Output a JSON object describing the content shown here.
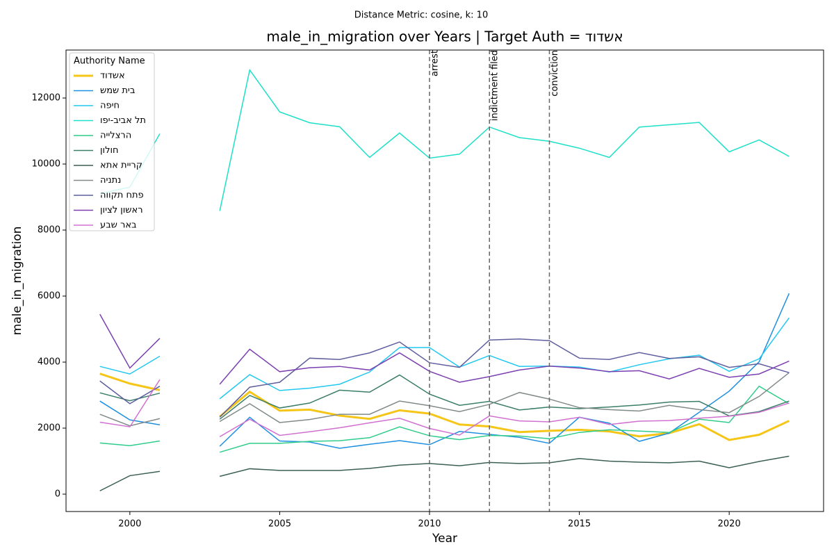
{
  "chart_data": {
    "type": "line",
    "title": "male_in_migration over Years | Target Auth = דודשא",
    "subtitle": "Distance Metric: cosine, k: 10",
    "x_label": "Year",
    "y_label": "male_in_migration",
    "legend_title": "Authority Name",
    "legend": "upper left",
    "x": [
      1999,
      2000,
      2001,
      2002,
      2003,
      2004,
      2005,
      2006,
      2007,
      2008,
      2009,
      2010,
      2011,
      2012,
      2013,
      2014,
      2015,
      2016,
      2017,
      2018,
      2019,
      2020,
      2021,
      2022
    ],
    "xlim": [
      1997.87,
      2023.15
    ],
    "xticks": [
      2000,
      2005,
      2010,
      2015,
      2020
    ],
    "ylim": [
      -526,
      13453
    ],
    "yticks": [
      0,
      2000,
      4000,
      6000,
      8000,
      10000,
      12000
    ],
    "annotations": [
      {
        "x": 2010,
        "label": "arrest"
      },
      {
        "x": 2012,
        "label": "indictment filed"
      },
      {
        "x": 2014,
        "label": "conviction"
      }
    ],
    "series": [
      {
        "name": "דודשא",
        "color": "#f5c518",
        "linewidth": 3,
        "values": [
          3650,
          3350,
          3150,
          null,
          2350,
          3100,
          2530,
          2560,
          2380,
          2280,
          2540,
          2440,
          2110,
          2050,
          1880,
          1920,
          1950,
          1900,
          1750,
          1850,
          2120,
          1640,
          1800,
          2220
        ]
      },
      {
        "name": "שמש תיב",
        "color": "#1f8fe0",
        "linewidth": 1.5,
        "values": [
          2820,
          2250,
          2100,
          null,
          1450,
          2330,
          1610,
          1580,
          1390,
          1510,
          1620,
          1500,
          1900,
          1810,
          1720,
          1540,
          2330,
          2150,
          1600,
          1850,
          2480,
          3120,
          4010,
          6080
        ]
      },
      {
        "name": "הפיח",
        "color": "#22c7f0",
        "linewidth": 1.5,
        "values": [
          3870,
          3640,
          4180,
          null,
          2890,
          3620,
          3140,
          3210,
          3330,
          3700,
          4440,
          4440,
          3850,
          4200,
          3870,
          3880,
          3850,
          3700,
          3920,
          4100,
          4210,
          3720,
          4100,
          5340
        ]
      },
      {
        "name": "ופי-ביבא לת",
        "color": "#1de0c8",
        "linewidth": 1.5,
        "values": [
          9100,
          9300,
          10920,
          null,
          8580,
          12850,
          11580,
          11250,
          11130,
          10200,
          10940,
          10180,
          10300,
          11120,
          10800,
          10690,
          10480,
          10200,
          11120,
          11190,
          11260,
          10370,
          10730,
          10230
        ]
      },
      {
        "name": "היילצרה",
        "color": "#2ecc8a",
        "linewidth": 1.5,
        "values": [
          1550,
          1470,
          1610,
          null,
          1270,
          1540,
          1540,
          1600,
          1620,
          1710,
          2040,
          1770,
          1650,
          1780,
          1760,
          1680,
          1870,
          1950,
          1910,
          1870,
          2270,
          2170,
          3270,
          2740
        ]
      },
      {
        "name": "ןולוח",
        "color": "#3a7d68",
        "linewidth": 1.5,
        "values": [
          3070,
          2830,
          3060,
          null,
          2270,
          2990,
          2610,
          2760,
          3150,
          3090,
          3610,
          3030,
          2690,
          2810,
          2550,
          2640,
          2590,
          2640,
          2700,
          2790,
          2810,
          2370,
          2500,
          2820
        ]
      },
      {
        "name": "אתא תיירק",
        "color": "#3b5f55",
        "linewidth": 1.5,
        "values": [
          100,
          560,
          690,
          null,
          540,
          770,
          720,
          720,
          720,
          780,
          880,
          930,
          860,
          960,
          930,
          950,
          1080,
          1000,
          970,
          950,
          1000,
          800,
          990,
          1150
        ]
      },
      {
        "name": "הינתנ",
        "color": "#808a88",
        "linewidth": 1.5,
        "values": [
          2420,
          2070,
          2290,
          null,
          2200,
          2740,
          2170,
          2260,
          2420,
          2420,
          2820,
          2680,
          2500,
          2720,
          3080,
          2880,
          2620,
          2560,
          2520,
          2690,
          2560,
          2470,
          2960,
          3680
        ]
      },
      {
        "name": "הווקת חתפ",
        "color": "#5e5e9e",
        "linewidth": 1.5,
        "values": [
          3430,
          2740,
          3270,
          null,
          2330,
          3240,
          3390,
          4120,
          4080,
          4280,
          4610,
          3980,
          3840,
          4670,
          4700,
          4650,
          4120,
          4080,
          4290,
          4110,
          4160,
          3840,
          3950,
          3680
        ]
      },
      {
        "name": "ןויצל ןושאר",
        "color": "#7b3fb0",
        "linewidth": 1.5,
        "values": [
          5450,
          3820,
          4720,
          null,
          3330,
          4390,
          3710,
          3830,
          3870,
          3760,
          4280,
          3720,
          3390,
          3560,
          3760,
          3880,
          3820,
          3710,
          3740,
          3490,
          3810,
          3540,
          3640,
          4030
        ]
      },
      {
        "name": "עבש ראב",
        "color": "#d070d0",
        "linewidth": 1.5,
        "values": [
          2180,
          2040,
          3470,
          null,
          1740,
          2270,
          1780,
          1890,
          2010,
          2160,
          2300,
          1990,
          1790,
          2370,
          2220,
          2190,
          2330,
          2110,
          2210,
          2230,
          2300,
          2360,
          2480,
          2760
        ]
      }
    ]
  }
}
